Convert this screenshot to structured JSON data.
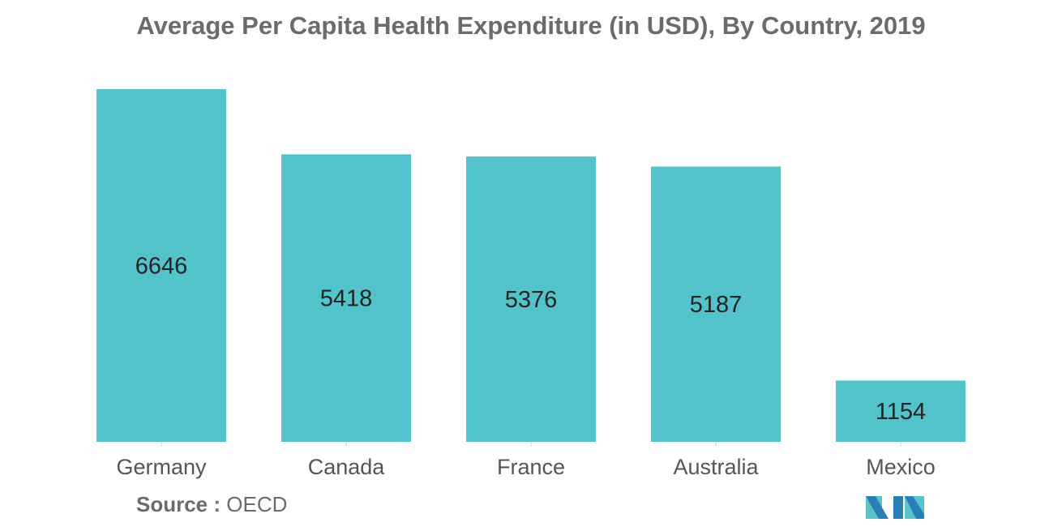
{
  "chart_data": {
    "type": "bar",
    "title": "Average Per Capita Health Expenditure (in USD), By Country, 2019",
    "categories": [
      "Germany",
      "Canada",
      "France",
      "Australia",
      "Mexico"
    ],
    "values": [
      6646,
      5418,
      5376,
      5187,
      1154
    ],
    "xlabel": "",
    "ylabel": "",
    "ylim": [
      0,
      6646
    ],
    "grid": false,
    "legend": "none",
    "colors": {
      "bar": "#52c3cb",
      "axis": "#d0d0d0",
      "label": "#222222",
      "category": "#555555"
    }
  },
  "source": {
    "label": "Source :",
    "value": "OECD"
  },
  "logo": {
    "icon": "mordor-intelligence-logo-icon",
    "colors": [
      "#2a7fb4",
      "#57c4cc"
    ]
  }
}
